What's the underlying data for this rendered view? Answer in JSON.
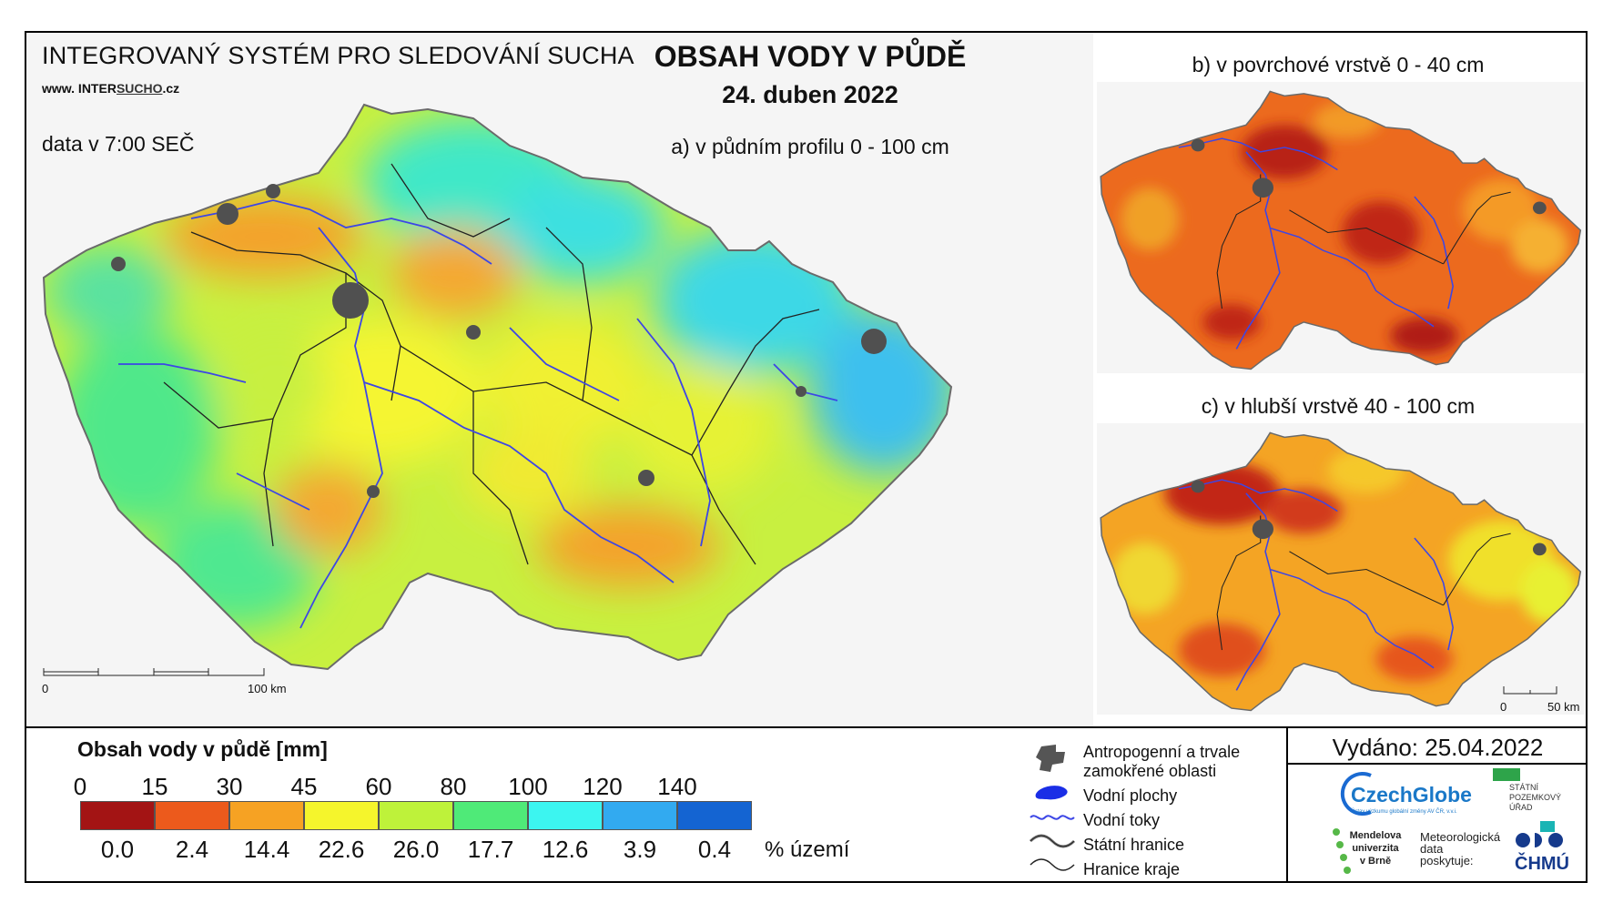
{
  "header": {
    "system_title": "INTEGROVANÝ SYSTÉM PRO SLEDOVÁNÍ SUCHA",
    "url_prefix": "www. INTER",
    "url_underlined": "SUCHO",
    "url_suffix": ".cz",
    "data_time": "data v 7:00 SEČ",
    "title": "OBSAH VODY V PŮDĚ",
    "date": "24. duben 2022"
  },
  "maps": {
    "a_label": "a) v půdním profilu 0 - 100 cm",
    "b_label": "b) v povrchové vrstvě 0 - 40 cm",
    "c_label": "c) v hlubší vrstvě 40 - 100 cm",
    "scale_main": {
      "start": "0",
      "end": "100 km"
    },
    "scale_small": {
      "start": "0",
      "end": "50 km"
    }
  },
  "legend": {
    "title": "Obsah vody v půdě  [mm]",
    "ticks": [
      "0",
      "15",
      "30",
      "45",
      "60",
      "80",
      "100",
      "120",
      "140"
    ],
    "bins": [
      {
        "color": "#a31414",
        "pct": "0.0"
      },
      {
        "color": "#ec5a1c",
        "pct": "2.4"
      },
      {
        "color": "#f6a223",
        "pct": "14.4"
      },
      {
        "color": "#f5f52c",
        "pct": "22.6"
      },
      {
        "color": "#bef23a",
        "pct": "26.0"
      },
      {
        "color": "#4fea78",
        "pct": "17.7"
      },
      {
        "color": "#3cf5f0",
        "pct": "12.6"
      },
      {
        "color": "#32aaf0",
        "pct": "3.9"
      },
      {
        "color": "#1464d2",
        "pct": "0.4"
      }
    ],
    "pct_label": "% území",
    "map_legend": {
      "anthropogenic_1": "Antropogenní a trvale",
      "anthropogenic_2": "zamokřené oblasti",
      "water_bodies": "Vodní plochy",
      "water_courses": "Vodní toky",
      "state_border": "Státní hranice",
      "region_border": "Hranice kraje"
    }
  },
  "footer": {
    "issued": "Vydáno: 25.04.2022",
    "czechglobe": "CzechGlobe",
    "czechglobe_sub": "Ústav výzkumu globální změny AV ČR, v.v.i.",
    "spu_1": "STÁTNÍ",
    "spu_2": "POZEMKOVÝ",
    "spu_3": "ÚŘAD",
    "mendelu_1": "Mendelova",
    "mendelu_2": "univerzita",
    "mendelu_3": "v Brně",
    "meteo_1": "Meteorologická",
    "meteo_2": "data",
    "meteo_3": "poskytuje:",
    "chmu": "ČHMÚ"
  }
}
